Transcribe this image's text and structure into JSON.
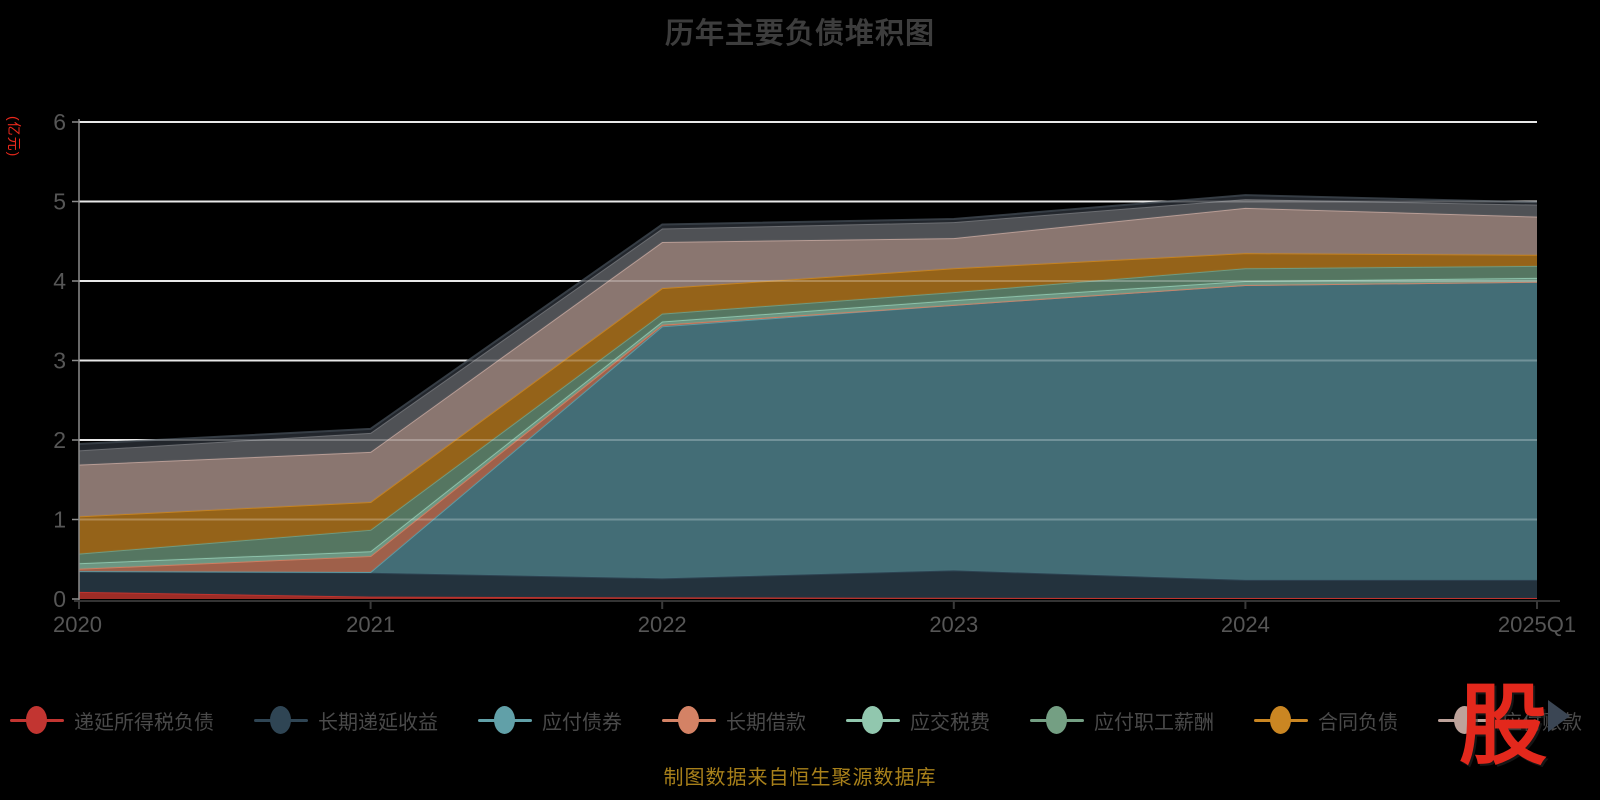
{
  "title": "历年主要负债堆积图",
  "footer": "制图数据来自恒生聚源数据库",
  "logo_text": "股",
  "y_axis": {
    "name": "(亿元)",
    "ticks": [
      "0",
      "1",
      "2",
      "3",
      "4",
      "5",
      "6"
    ],
    "min": 0,
    "max": 6,
    "label_color": "#565656",
    "unit_color": "#e8281c"
  },
  "x_axis": {
    "categories": [
      "2020",
      "2021",
      "2022",
      "2023",
      "2024",
      "2025Q1"
    ],
    "label_color": "#565656"
  },
  "legend": {
    "visible_items": [
      "递延所得税负债",
      "长期递延收益",
      "应付债券",
      "长期借款",
      "应交税费",
      "应付职工薪酬",
      "合同负债",
      "应付账款"
    ],
    "pager_icon": "right-triangle",
    "label_color": "#4a4a4a"
  },
  "chart_data": {
    "type": "area",
    "stacked": true,
    "grid": true,
    "legend_position": "bottom",
    "ylim": [
      0,
      6
    ],
    "x": [
      "2020",
      "2021",
      "2022",
      "2023",
      "2024",
      "2025Q1"
    ],
    "series": [
      {
        "name": "递延所得税负债",
        "line_color": "#c23531",
        "fill_color": "#a32d27",
        "values": [
          0.09,
          0.03,
          0.02,
          0.015,
          0.012,
          0.012
        ]
      },
      {
        "name": "长期递延收益",
        "line_color": "#2f4554",
        "fill_color": "#24343f",
        "values": [
          0.26,
          0.3,
          0.24,
          0.345,
          0.228,
          0.228
        ]
      },
      {
        "name": "应付债券",
        "line_color": "#61a0a8",
        "fill_color": "#45717a",
        "values": [
          0.0,
          0.01,
          3.17,
          3.34,
          3.71,
          3.75
        ]
      },
      {
        "name": "长期借款",
        "line_color": "#d48265",
        "fill_color": "#a4634c",
        "values": [
          0.03,
          0.2,
          0.02,
          0.0,
          0.0,
          0.0
        ]
      },
      {
        "name": "应交税费",
        "line_color": "#91c7ae",
        "fill_color": "#6f9a85",
        "values": [
          0.07,
          0.06,
          0.04,
          0.06,
          0.05,
          0.05
        ]
      },
      {
        "name": "应付职工薪酬",
        "line_color": "#749f83",
        "fill_color": "#587a64",
        "values": [
          0.12,
          0.27,
          0.1,
          0.1,
          0.16,
          0.15
        ]
      },
      {
        "name": "合同负债",
        "line_color": "#ca8622",
        "fill_color": "#9a661a",
        "values": [
          0.47,
          0.35,
          0.32,
          0.3,
          0.19,
          0.14
        ]
      },
      {
        "name": "应付账款",
        "line_color": "#bda29a",
        "fill_color": "#8e7a74",
        "values": [
          0.65,
          0.63,
          0.58,
          0.38,
          0.57,
          0.48
        ]
      },
      {
        "name": "",
        "line_color": "#6e7074",
        "fill_color": "#525458",
        "values": [
          0.18,
          0.24,
          0.17,
          0.2,
          0.11,
          0.15
        ]
      },
      {
        "name": "",
        "line_color": "#3a4149",
        "fill_color": "#23272d",
        "values": [
          0.08,
          0.05,
          0.05,
          0.04,
          0.05,
          0.03
        ]
      }
    ]
  }
}
